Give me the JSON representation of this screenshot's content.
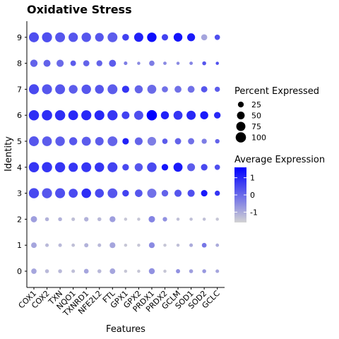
{
  "chart_data": {
    "type": "scatter",
    "title": "Oxidative Stress",
    "xlabel": "Features",
    "ylabel": "Identity",
    "categories": [
      "COX1",
      "COX2",
      "TXN",
      "NQO1",
      "TXNRD1",
      "NFE2L2",
      "FTL",
      "GPX1",
      "GPX2",
      "PRDX1",
      "PRDX2",
      "GCLM",
      "SOD1",
      "SOD2",
      "GCLC"
    ],
    "identities": [
      "0",
      "1",
      "2",
      "3",
      "4",
      "5",
      "6",
      "7",
      "8",
      "9"
    ],
    "grid": false,
    "legend_position": "right",
    "size_legend": {
      "title": "Percent Expressed",
      "values": [
        25,
        50,
        75,
        100
      ],
      "labels": [
        "25",
        "50",
        "75",
        "100"
      ]
    },
    "color_legend": {
      "title": "Average Expression",
      "range": [
        -1.6,
        1.6
      ],
      "ticks": [
        1,
        0,
        -1
      ],
      "labels": [
        "1",
        "0",
        "-1"
      ],
      "low_color": "#d3d3d3",
      "high_color": "#0000ff"
    },
    "series": [
      {
        "identity": "0",
        "pct": [
          20,
          8,
          8,
          6,
          14,
          8,
          22,
          4,
          4,
          26,
          4,
          10,
          8,
          8,
          6
        ],
        "avg": [
          -0.9,
          -1.2,
          -1.2,
          -1.3,
          -0.9,
          -1.2,
          -0.9,
          -1.4,
          -1.4,
          -0.6,
          -1.4,
          -0.6,
          -0.8,
          -0.7,
          -0.9
        ]
      },
      {
        "identity": "1",
        "pct": [
          22,
          6,
          6,
          5,
          10,
          6,
          24,
          4,
          4,
          24,
          4,
          4,
          6,
          14,
          5
        ],
        "avg": [
          -0.9,
          -1.2,
          -1.2,
          -1.3,
          -1.1,
          -1.2,
          -0.9,
          -1.4,
          -1.4,
          -0.5,
          -1.4,
          -1.3,
          -1.0,
          -0.2,
          -1.0
        ]
      },
      {
        "identity": "2",
        "pct": [
          30,
          8,
          8,
          6,
          12,
          8,
          26,
          4,
          4,
          32,
          12,
          4,
          4,
          4,
          4
        ],
        "avg": [
          -0.8,
          -1.1,
          -1.1,
          -1.3,
          -1.1,
          -1.2,
          -0.8,
          -1.4,
          -1.4,
          -0.4,
          -0.6,
          -1.3,
          -1.3,
          -1.3,
          -1.4
        ]
      },
      {
        "identity": "3",
        "pct": [
          96,
          94,
          92,
          72,
          84,
          70,
          88,
          34,
          48,
          76,
          34,
          42,
          42,
          32,
          18
        ],
        "avg": [
          0.5,
          0.3,
          0.4,
          0.5,
          0.9,
          0.5,
          0.3,
          0.6,
          0.3,
          -0.1,
          0.1,
          0.3,
          0.4,
          1.2,
          0.8
        ]
      },
      {
        "identity": "4",
        "pct": [
          98,
          98,
          96,
          78,
          90,
          82,
          92,
          34,
          56,
          84,
          34,
          74,
          52,
          34,
          20
        ],
        "avg": [
          0.8,
          0.8,
          0.8,
          0.8,
          0.8,
          0.8,
          0.6,
          0.5,
          0.3,
          0.5,
          1.3,
          1.2,
          0.2,
          0.5,
          0.4
        ]
      },
      {
        "identity": "5",
        "pct": [
          90,
          86,
          82,
          56,
          74,
          62,
          88,
          32,
          52,
          66,
          20,
          30,
          30,
          18,
          12
        ],
        "avg": [
          0.3,
          0.2,
          0.2,
          0.3,
          0.2,
          0.2,
          0.1,
          1.1,
          0.1,
          -0.3,
          0.2,
          0.1,
          -0.1,
          -0.3,
          0.1
        ]
      },
      {
        "identity": "6",
        "pct": [
          98,
          100,
          98,
          88,
          94,
          90,
          96,
          50,
          76,
          100,
          56,
          72,
          76,
          56,
          34
        ],
        "avg": [
          0.9,
          0.9,
          0.9,
          1.0,
          1.0,
          1.0,
          0.8,
          0.6,
          0.4,
          1.8,
          1.1,
          0.8,
          1.0,
          1.2,
          1.0
        ]
      },
      {
        "identity": "7",
        "pct": [
          94,
          92,
          90,
          68,
          82,
          70,
          90,
          42,
          56,
          72,
          28,
          38,
          38,
          30,
          18
        ],
        "avg": [
          0.5,
          0.3,
          0.3,
          0.2,
          0.3,
          0.3,
          0.2,
          0.8,
          0.1,
          0.0,
          -0.1,
          -0.1,
          -0.1,
          0.3,
          0.2
        ]
      },
      {
        "identity": "8",
        "pct": [
          44,
          40,
          42,
          22,
          28,
          26,
          40,
          6,
          4,
          20,
          5,
          4,
          5,
          8,
          4
        ],
        "avg": [
          0.1,
          0.1,
          0.0,
          0.2,
          0.1,
          0.1,
          0.2,
          -0.3,
          -0.5,
          -0.3,
          -0.5,
          -0.5,
          -0.4,
          0.3,
          0.4
        ]
      },
      {
        "identity": "9",
        "pct": [
          92,
          94,
          90,
          80,
          82,
          66,
          90,
          36,
          76,
          82,
          32,
          68,
          54,
          28,
          20
        ],
        "avg": [
          0.4,
          0.4,
          0.3,
          0.3,
          0.3,
          0.3,
          0.2,
          0.6,
          1.1,
          1.4,
          0.6,
          1.3,
          1.2,
          -0.9,
          0.4
        ]
      }
    ]
  }
}
